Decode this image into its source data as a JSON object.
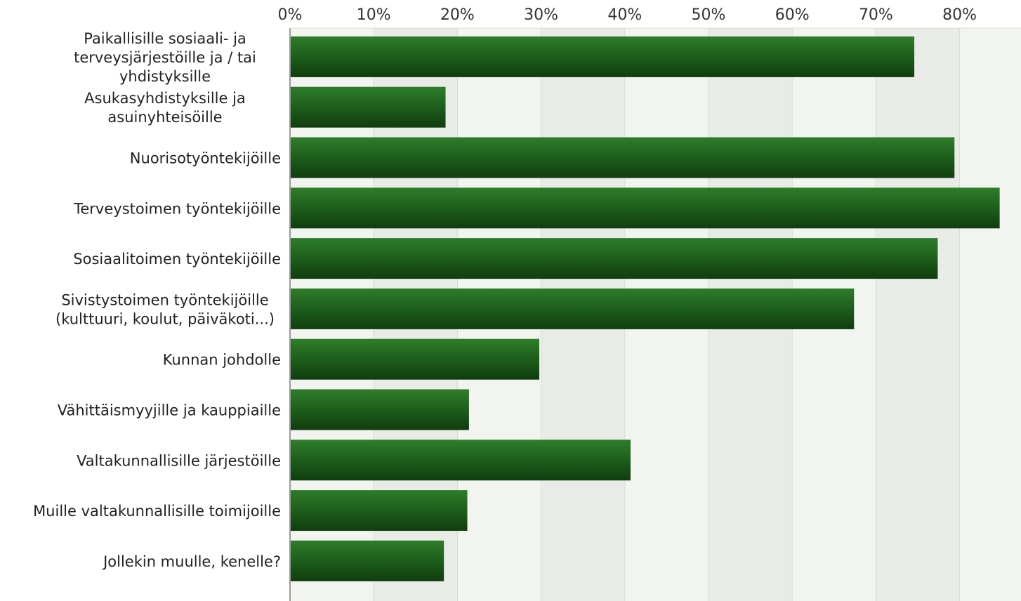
{
  "chart_data": {
    "type": "bar",
    "orientation": "horizontal",
    "title": "",
    "xlabel": "",
    "ylabel": "",
    "xlim": [
      0,
      87
    ],
    "grid": true,
    "legend": "none",
    "ticks": [
      "0%",
      "10%",
      "20%",
      "30%",
      "40%",
      "50%",
      "60%",
      "70%",
      "80%"
    ],
    "tick_values": [
      0,
      10,
      20,
      30,
      40,
      50,
      60,
      70,
      80
    ],
    "categories": [
      [
        "Paikallisille sosiaali- ja",
        "terveysjärjestöille ja / tai",
        "yhdistyksille"
      ],
      [
        "Asukasyhdistyksille ja",
        "asuinyhteisöille"
      ],
      [
        "Nuorisotyöntekijöille"
      ],
      [
        "Terveystoimen työntekijöille"
      ],
      [
        "Sosiaalitoimen työntekijöille"
      ],
      [
        "Sivistystoimen työntekijöille",
        "(kulttuuri, koulut, päiväkoti...)"
      ],
      [
        "Kunnan johdolle"
      ],
      [
        "Vähittäismyyjille ja kauppiaille"
      ],
      [
        "Valtakunnallisille järjestöille"
      ],
      [
        "Muille valtakunnallisille toimijoille"
      ],
      [
        "Jollekin muulle, kenelle?"
      ]
    ],
    "values": [
      74.5,
      18.5,
      79.3,
      84.7,
      77.3,
      67.3,
      29.7,
      21.3,
      40.6,
      21.1,
      18.3
    ],
    "colors": {
      "bar_top": "#2e7d2a",
      "bar_mid": "#1d5e1b",
      "bar_bottom": "#103d0f",
      "plot_bg": "#f2f4f0",
      "plot_bg_alt": "#e9ece6",
      "grid": "#d8dcd4",
      "axis": "#9a9a9a"
    }
  }
}
